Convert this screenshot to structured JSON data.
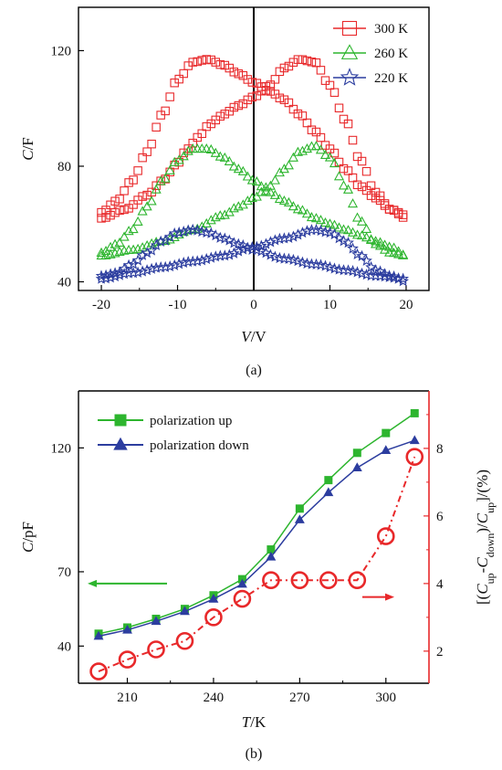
{
  "chart_data": [
    {
      "panel": "(a)",
      "type": "scatter",
      "title": "",
      "xlabel_italic": "V",
      "xlabel_unit": "/V",
      "ylabel_italic": "C",
      "ylabel_unit": "/F",
      "xlim": [
        -23,
        23
      ],
      "ylim": [
        37,
        135
      ],
      "xticks": [
        -20,
        -10,
        0,
        10,
        20
      ],
      "yticks": [
        40,
        80,
        120
      ],
      "vertical_line_x": 0,
      "legend_position": "top-right",
      "series": [
        {
          "name": "300 K",
          "color": "#e8282a",
          "marker": "square",
          "sweep_up": {
            "x": [
              -20,
              -17,
              -14,
              -12,
              -10,
              -9,
              -8,
              -7,
              -6,
              -5,
              -4,
              -2,
              0,
              2,
              4,
              6,
              8,
              10,
              12,
              14,
              16,
              18,
              20
            ],
            "y": [
              62,
              65,
              70,
              75,
              81,
              85,
              88,
              91,
              94,
              96,
              98,
              101,
              104,
              108,
              114,
              117,
              116,
              108,
              96,
              82,
              71,
              65,
              62
            ]
          },
          "sweep_down": {
            "x": [
              -20,
              -18,
              -16,
              -14,
              -12,
              -10,
              -8,
              -6,
              -4,
              -2,
              0,
              2,
              4,
              6,
              8,
              10,
              12,
              14,
              16,
              18,
              20
            ],
            "y": [
              64,
              68,
              75,
              85,
              98,
              110,
              116,
              117,
              115,
              112,
              109,
              106,
              103,
              98,
              92,
              86,
              79,
              73,
              69,
              65,
              63
            ]
          }
        },
        {
          "name": "260 K",
          "color": "#2db52e",
          "marker": "triangle",
          "sweep_up": {
            "x": [
              -20,
              -16,
              -12,
              -8,
              -4,
              -2,
              0,
              2,
              4,
              6,
              8,
              10,
              12,
              14,
              16,
              18,
              20
            ],
            "y": [
              49,
              51,
              54,
              58,
              63,
              66,
              69,
              73,
              79,
              85,
              87,
              83,
              73,
              61,
              53,
              50,
              49
            ]
          },
          "sweep_down": {
            "x": [
              -20,
              -18,
              -16,
              -14,
              -12,
              -10,
              -8,
              -6,
              -4,
              -2,
              0,
              2,
              4,
              6,
              8,
              10,
              12,
              14,
              16,
              18,
              20
            ],
            "y": [
              50,
              53,
              58,
              66,
              75,
              82,
              86,
              86,
              83,
              79,
              75,
              71,
              68,
              65,
              62,
              60,
              58,
              56,
              54,
              52,
              49
            ]
          }
        },
        {
          "name": "220 K",
          "color": "#2c3d9f",
          "marker": "star",
          "sweep_up": {
            "x": [
              -20,
              -16,
              -12,
              -8,
              -4,
              0,
              4,
              8,
              10,
              12,
              14,
              16,
              18,
              20
            ],
            "y": [
              41,
              43,
              45,
              47,
              49,
              52,
              55,
              58,
              57,
              54,
              49,
              44,
              42,
              40
            ]
          },
          "sweep_down": {
            "x": [
              -20,
              -18,
              -16,
              -14,
              -12,
              -10,
              -8,
              -6,
              -4,
              -2,
              0,
              4,
              8,
              12,
              16,
              20
            ],
            "y": [
              42,
              43,
              46,
              50,
              54,
              57,
              58,
              57,
              55,
              53,
              51,
              48,
              46,
              44,
              42,
              41
            ]
          }
        }
      ]
    },
    {
      "panel": "(b)",
      "type": "line",
      "title": "",
      "xlabel_italic": "T",
      "xlabel_unit": "/K",
      "ylabel_left_italic": "C",
      "ylabel_left_unit": "/pF",
      "ylabel_right": "[(C_up-C_down)/C_up]/(%)",
      "ylabel_right_parts": [
        "[(",
        "C",
        "up",
        "-",
        "C",
        "down",
        ")/",
        "C",
        "up",
        "]/(%)"
      ],
      "xlim": [
        193,
        315
      ],
      "ylim_left": [
        25,
        143
      ],
      "ylim_right": [
        1.05,
        9.7
      ],
      "xticks": [
        210,
        240,
        270,
        300
      ],
      "yticks_left": [
        40,
        70,
        120
      ],
      "yticks_right": [
        2,
        4,
        6,
        8
      ],
      "legend_position": "top-left",
      "x": [
        200,
        210,
        220,
        230,
        240,
        250,
        260,
        270,
        280,
        290,
        300,
        310
      ],
      "series": [
        {
          "name": "polarization up",
          "axis": "left",
          "color": "#2db52e",
          "marker": "filled-square",
          "values": [
            45,
            47.5,
            51,
            55,
            60.5,
            67,
            79,
            95.5,
            107,
            118,
            126,
            134
          ]
        },
        {
          "name": "polarization down",
          "axis": "left",
          "color": "#2c3d9f",
          "marker": "filled-triangle",
          "values": [
            44,
            46.5,
            50,
            54,
            59,
            65,
            76,
            91,
            102,
            112,
            119,
            123
          ]
        },
        {
          "name": "",
          "axis": "right",
          "color": "#e8282a",
          "marker": "open-circle",
          "dashed": true,
          "values": [
            1.4,
            1.75,
            2.05,
            2.3,
            3.0,
            3.55,
            4.1,
            4.1,
            4.1,
            4.1,
            5.4,
            7.75
          ]
        }
      ],
      "arrows": [
        {
          "points_to": "left-axis",
          "color": "#2db52e",
          "at_value": 4.0
        },
        {
          "points_to": "right-axis",
          "color": "#e8282a",
          "at_value": 3.6
        }
      ]
    }
  ]
}
